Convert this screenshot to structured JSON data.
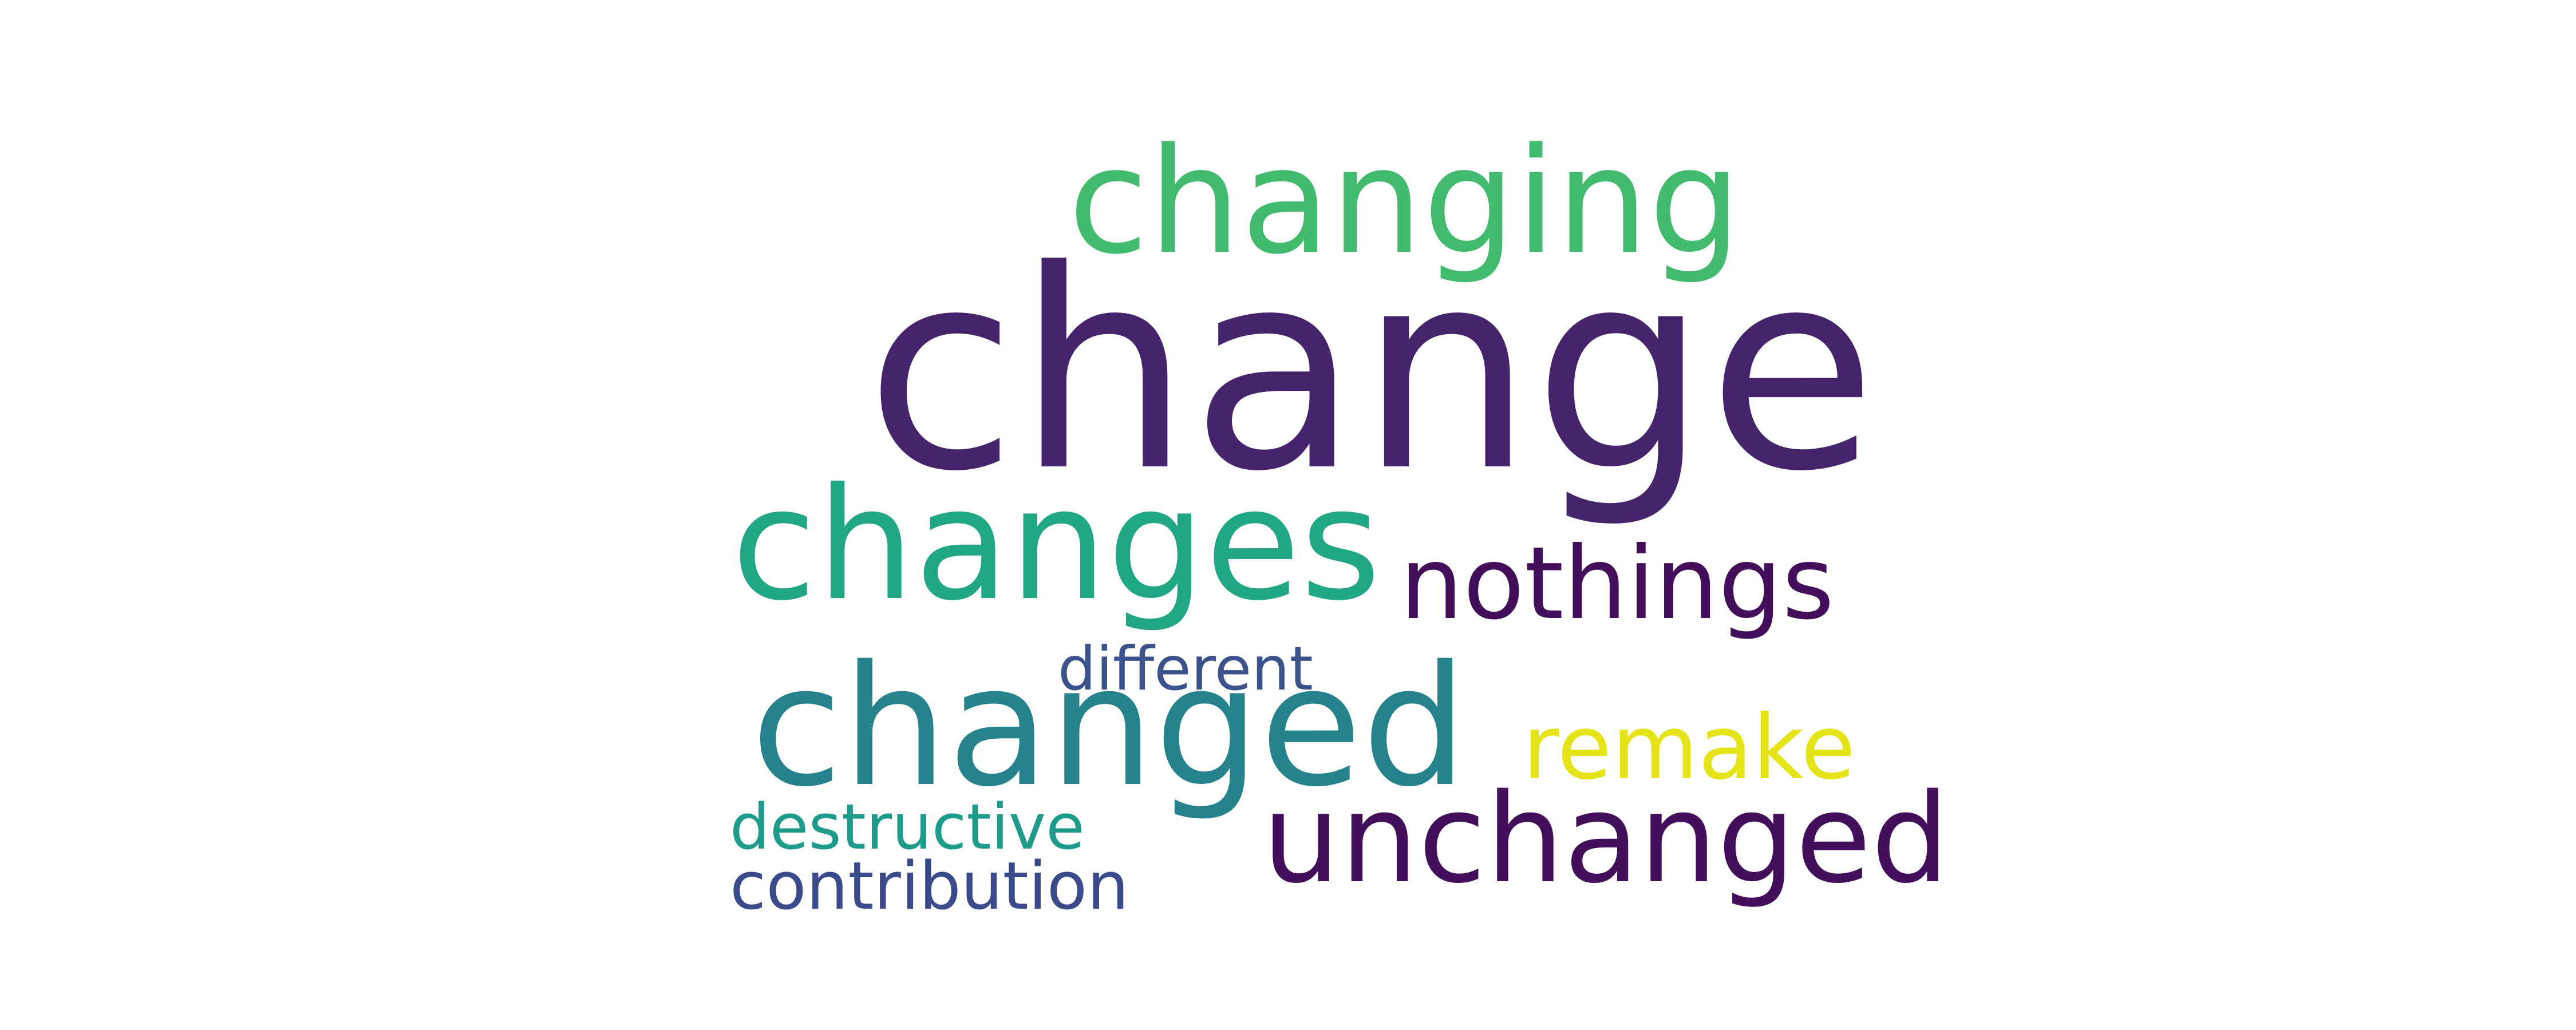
{
  "word_cloud": {
    "background_color": "#ffffff",
    "words": [
      {
        "text": "change",
        "color": "#46246b"
      },
      {
        "text": "changing",
        "color": "#43bb6e"
      },
      {
        "text": "changes",
        "color": "#22a785"
      },
      {
        "text": "nothings",
        "color": "#440f5a"
      },
      {
        "text": "different",
        "color": "#3b528b"
      },
      {
        "text": "changed",
        "color": "#26838e"
      },
      {
        "text": "remake",
        "color": "#e5e419"
      },
      {
        "text": "destructive",
        "color": "#1e9b8a"
      },
      {
        "text": "unchanged",
        "color": "#440f5a"
      },
      {
        "text": "contribution",
        "color": "#3b4a8a"
      }
    ]
  }
}
